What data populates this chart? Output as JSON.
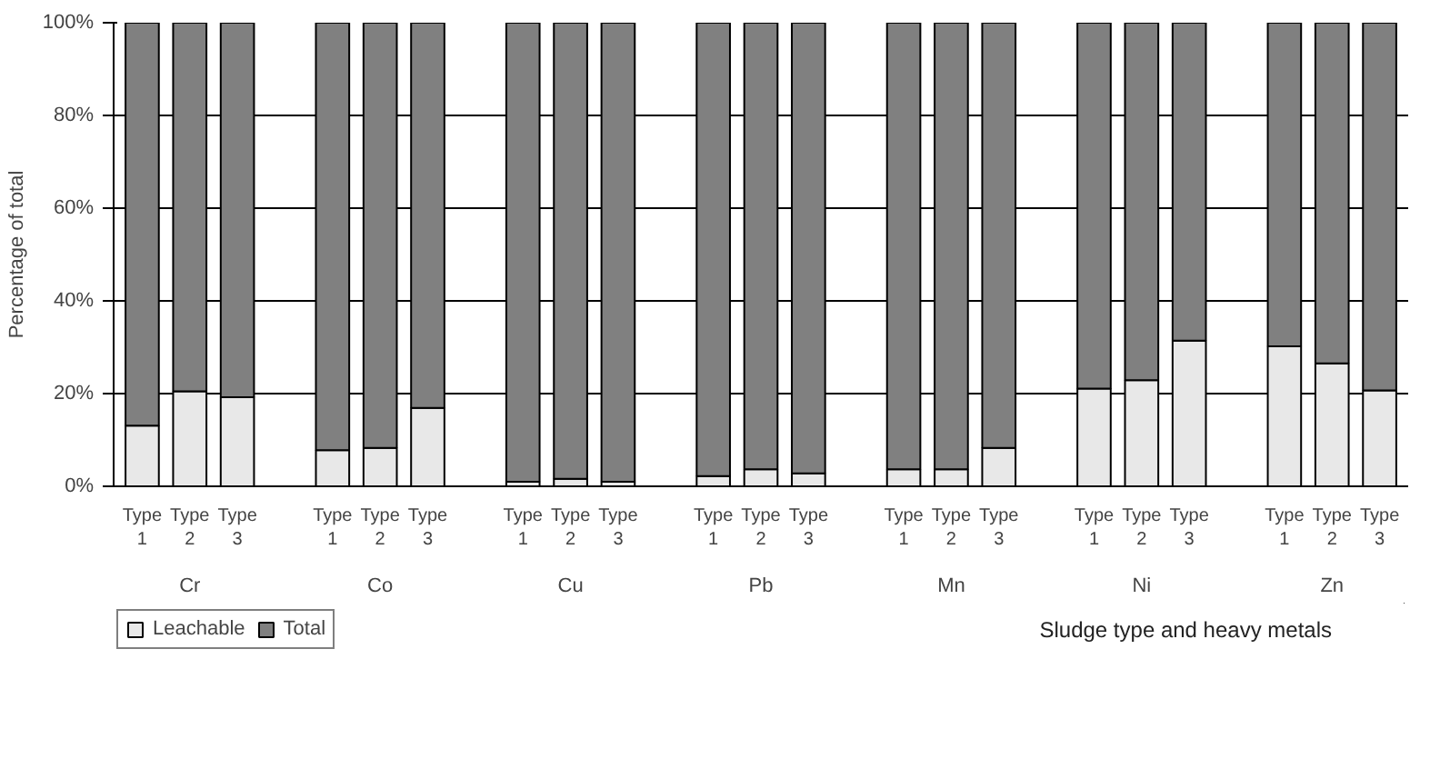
{
  "chart_data": {
    "type": "bar",
    "stacked": true,
    "ylabel": "Percentage of total",
    "xlabel": "Sludge type and heavy metals",
    "categories": [
      "Type 1",
      "Type 2",
      "Type 3",
      null,
      "Type 1",
      "Type 2",
      "Type 3",
      null,
      "Type 1",
      "Type 2",
      "Type 3",
      null,
      "Type 1",
      "Type 2",
      "Type 3",
      null,
      "Type 1",
      "Type 2",
      "Type 3",
      null,
      "Type 1",
      "Type 2",
      "Type 3",
      null,
      "Type 1",
      "Type 2",
      "Type 3"
    ],
    "series": [
      {
        "name": "Leachable",
        "color": "#e8e8e8",
        "values": [
          13.1,
          20.5,
          19.2,
          null,
          7.8,
          8.3,
          16.9,
          null,
          1.0,
          1.6,
          1.0,
          null,
          2.2,
          3.7,
          2.8,
          null,
          3.7,
          3.7,
          8.3,
          null,
          21.1,
          22.9,
          31.4,
          null,
          30.2,
          26.5,
          20.7
        ]
      },
      {
        "name": "Total",
        "color": "#808080",
        "values": [
          86.9,
          79.5,
          80.8,
          null,
          92.2,
          91.7,
          83.1,
          null,
          99.0,
          98.4,
          99.0,
          null,
          97.8,
          96.3,
          97.2,
          null,
          96.3,
          96.3,
          91.7,
          null,
          78.9,
          77.1,
          68.6,
          null,
          69.8,
          73.5,
          79.3
        ]
      }
    ],
    "annotations": [
      "Cr",
      "Co",
      "Cu",
      "Pb",
      "Mn",
      "Ni",
      "Zn"
    ],
    "ylim": [
      0,
      100
    ],
    "yticks": [
      {
        "value": 0,
        "label": "0%"
      },
      {
        "value": 20,
        "label": "20%"
      },
      {
        "value": 40,
        "label": "40%"
      },
      {
        "value": 60,
        "label": "60%"
      },
      {
        "value": 80,
        "label": "80%"
      },
      {
        "value": 100,
        "label": "100%"
      }
    ],
    "grid": "y",
    "legend": "bottom left"
  }
}
